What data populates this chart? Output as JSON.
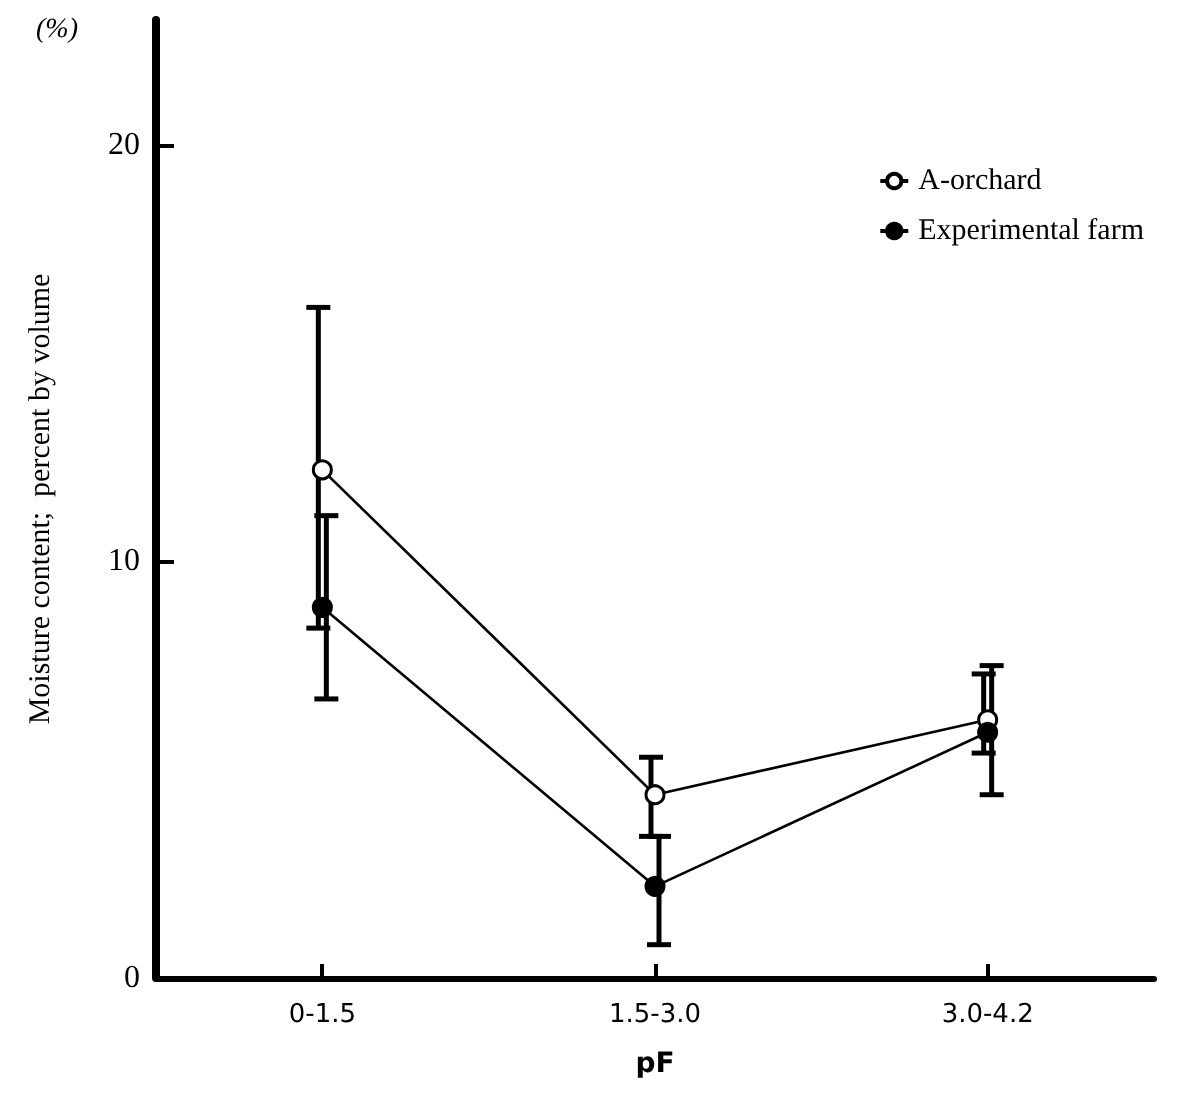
{
  "chart_data": {
    "type": "line",
    "xlabel": "pF",
    "ylabel": "Moisture content;  percent by volume",
    "annotations": [
      "(%)"
    ],
    "categories": [
      "0-1.5",
      "1.5-3.0",
      "3.0-4.2"
    ],
    "series": [
      {
        "name": "A-orchard",
        "color": "#000000",
        "values": [
          12.2,
          4.4,
          6.2
        ],
        "errors": [
          [
            8.4,
            16.1
          ],
          [
            3.4,
            5.3
          ],
          [
            5.4,
            7.3
          ]
        ]
      },
      {
        "name": "Experimental farm",
        "color": "#000000",
        "values": [
          8.9,
          2.2,
          5.9
        ],
        "errors": [
          [
            6.7,
            11.1
          ],
          [
            0.8,
            3.4
          ],
          [
            4.4,
            7.5
          ]
        ]
      }
    ],
    "ylim": [
      0,
      23
    ],
    "yticks": [
      0,
      10,
      20
    ],
    "grid": false,
    "legend": "top right",
    "marker": "circle",
    "line_style": "solid"
  }
}
